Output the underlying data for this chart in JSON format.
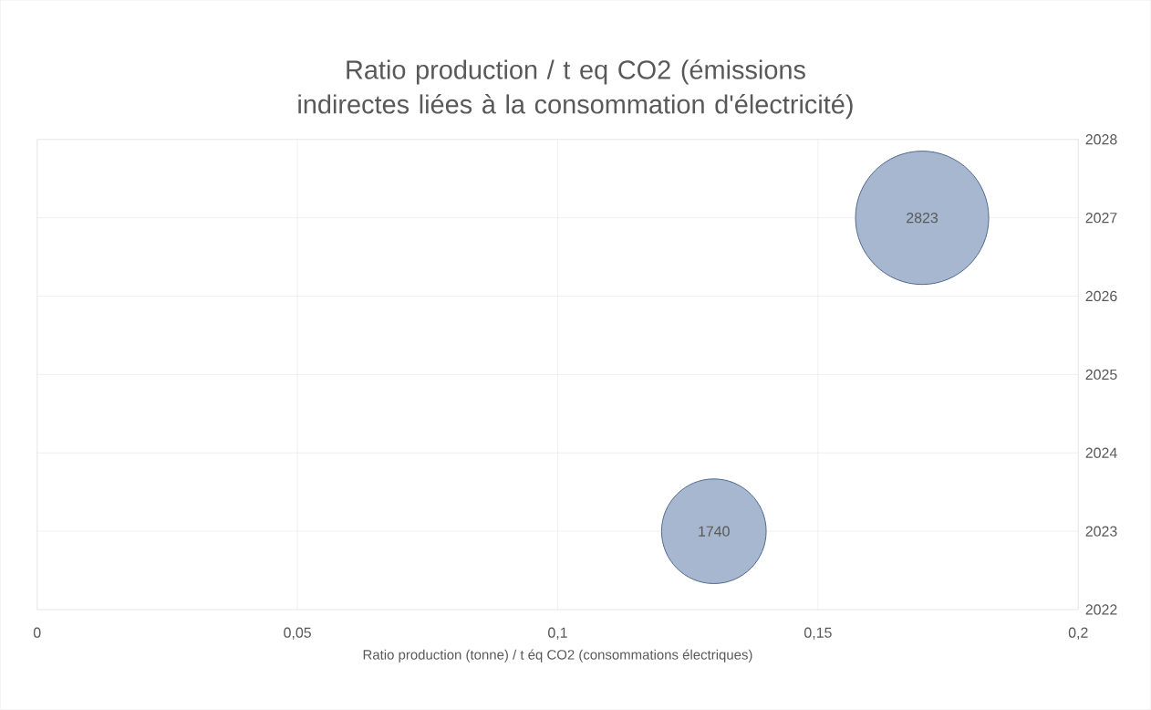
{
  "chart_data": {
    "type": "bubble",
    "title": "Ratio production / t eq CO2 (émissions indirectes liées à la consommation d'électricité)",
    "xlabel": "Ratio production (tonne) / t éq CO2 (consommations électriques)",
    "x": [
      0.13,
      0.17
    ],
    "values": [
      2023,
      2027
    ],
    "sizes": [
      1740,
      2823
    ],
    "value_labels": [
      "1740",
      "2823"
    ],
    "color": "#a7b7cf",
    "xlim": [
      0,
      0.2
    ],
    "ylim": [
      2022,
      2028
    ],
    "xticks": [
      0,
      {
        "value": 0.05,
        "label": "0,05"
      },
      {
        "value": 0.1,
        "label": "0,1"
      },
      {
        "value": 0.15,
        "label": "0,15"
      },
      {
        "value": 0.2,
        "label": "0,2"
      }
    ],
    "yticks": [
      2022,
      2023,
      2024,
      2025,
      2026,
      2027,
      2028
    ],
    "grid": true
  }
}
